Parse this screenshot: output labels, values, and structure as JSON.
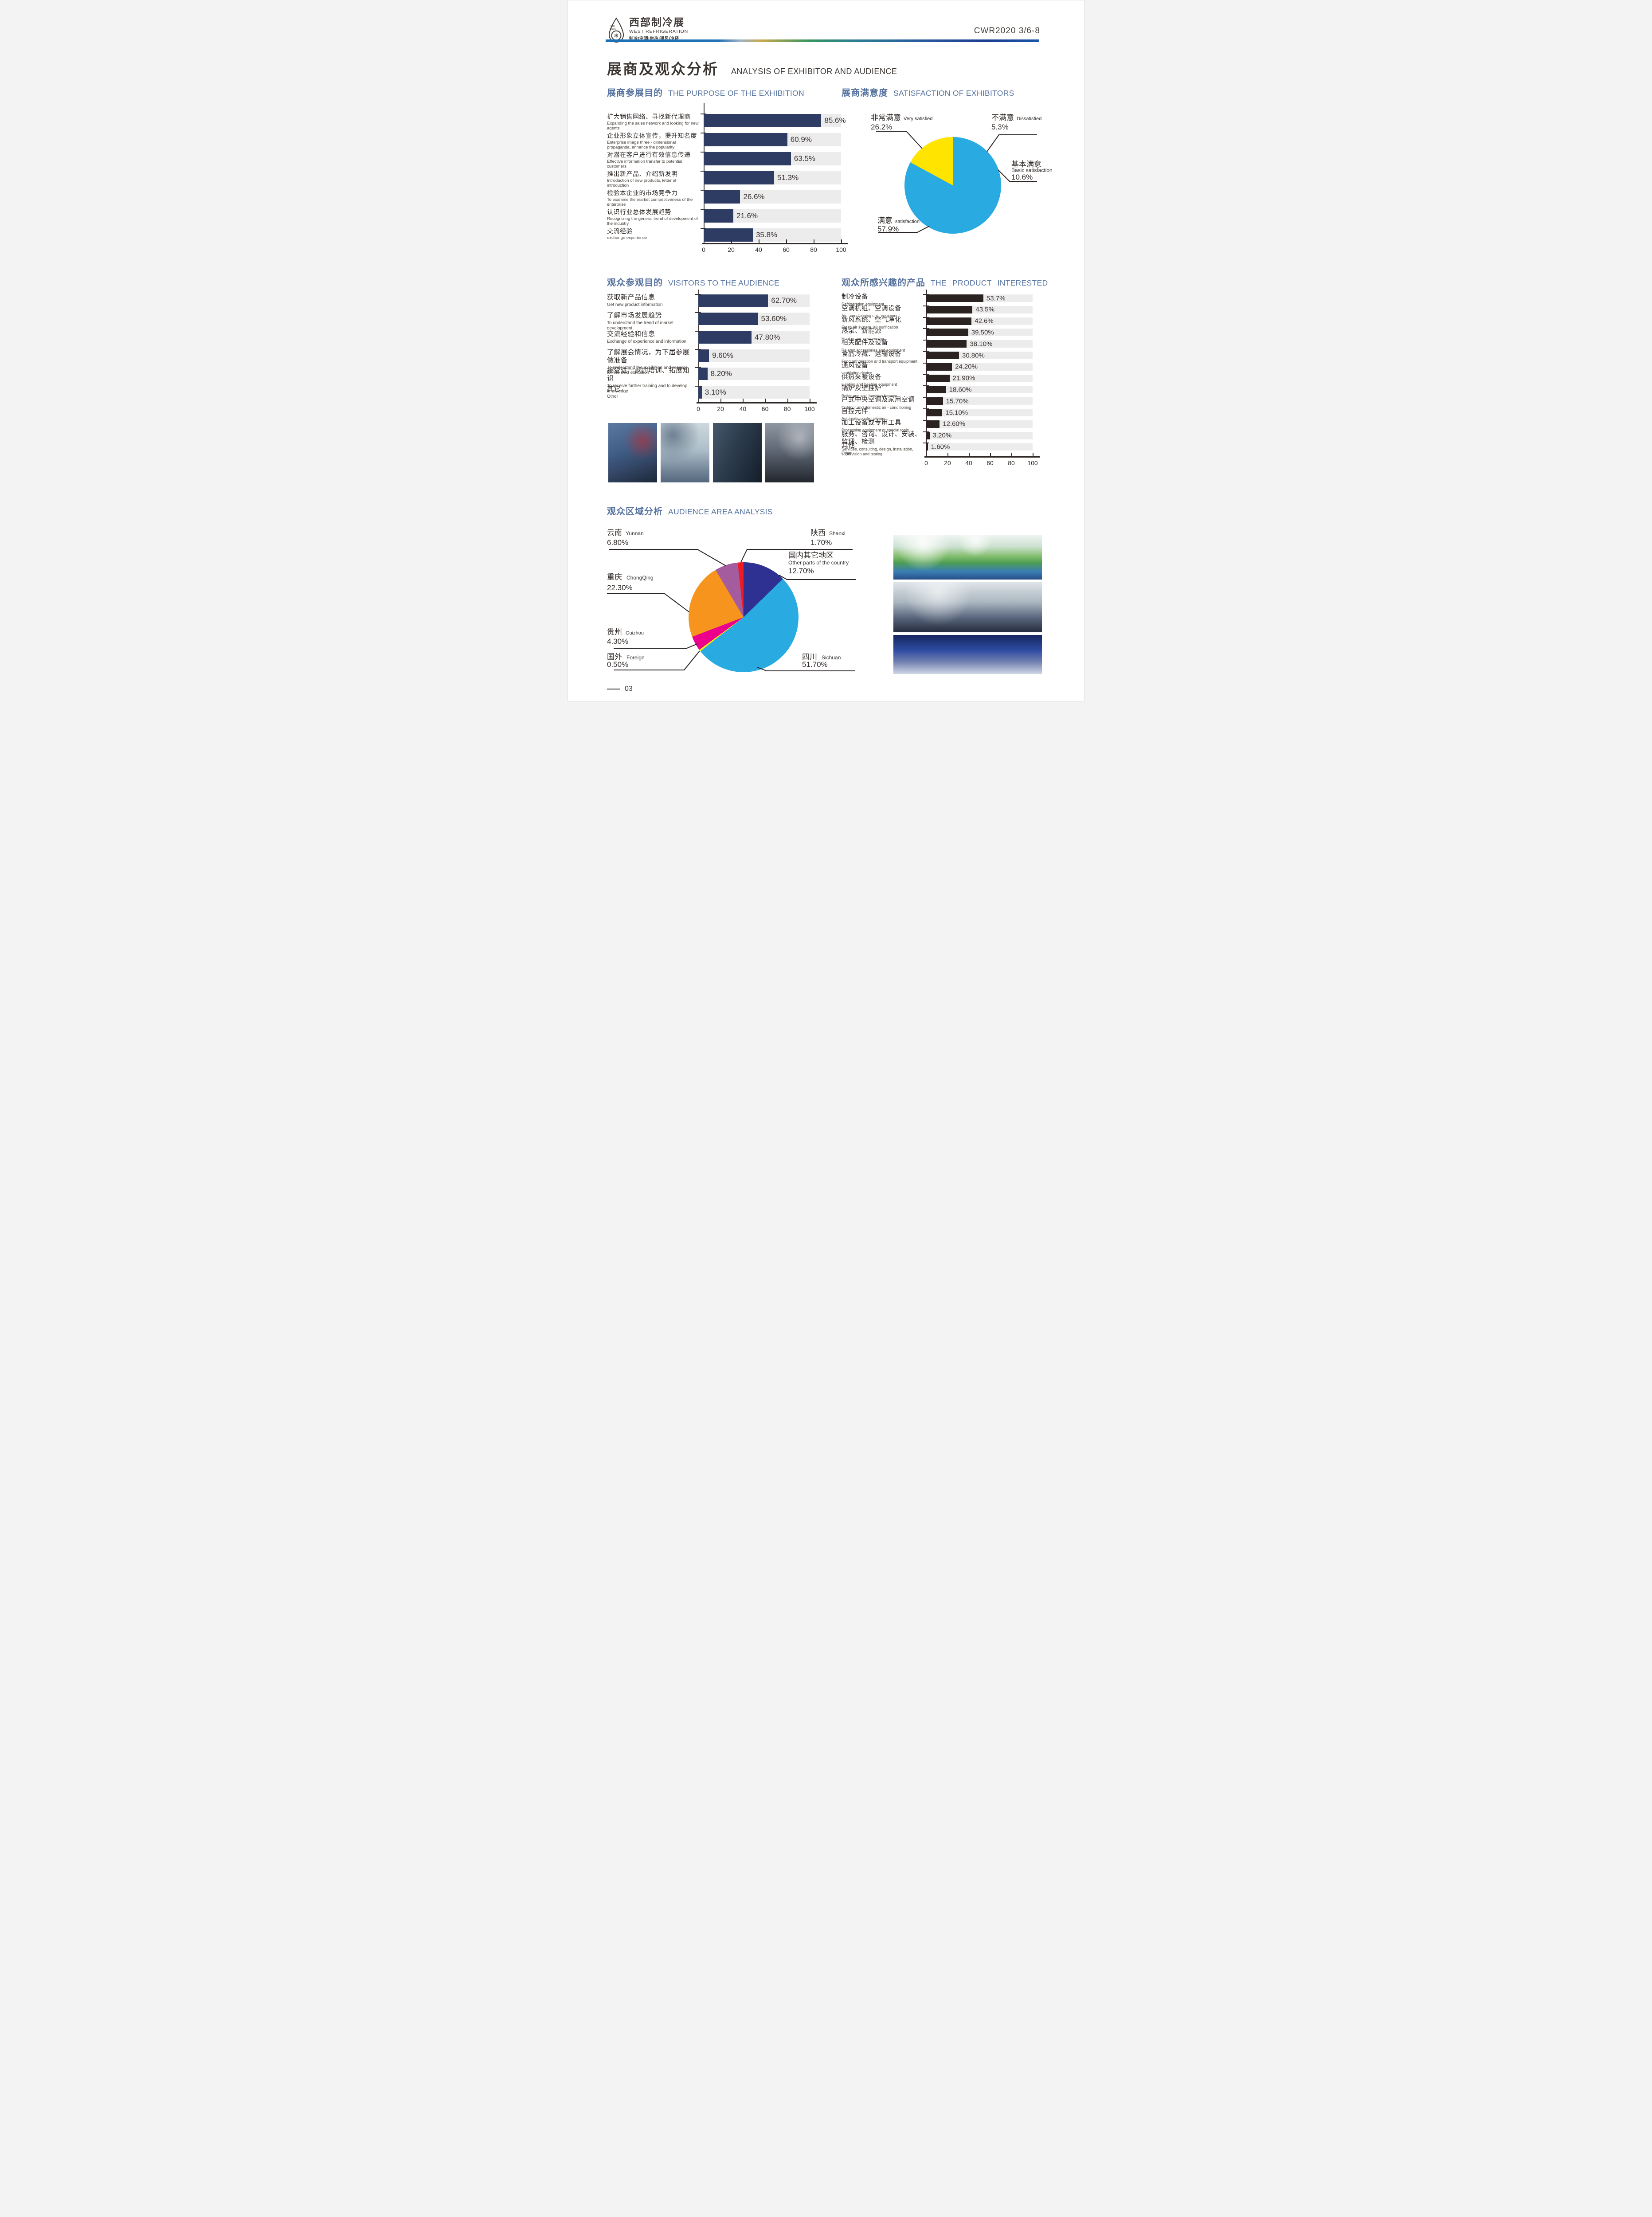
{
  "header": {
    "logo": {
      "zh": "西部制冷展",
      "en": "WEST REFRIGERATION",
      "tagline": "制冷|空调|供热|通风|冷链",
      "badge": "WR 2020"
    },
    "edition": "CWR2020 3/6-8"
  },
  "page_title": {
    "zh": "展商及观众分析",
    "en": "ANALYSIS OF EXHIBITOR AND AUDIENCE"
  },
  "sections": {
    "purpose": {
      "title_zh": "展商参展目的",
      "title_en": "THE PURPOSE OF THE EXHIBITION"
    },
    "satisfaction": {
      "title_zh": "展商满意度",
      "title_en": "SATISFACTION OF EXHIBITORS"
    },
    "visitors": {
      "title_zh": "观众参观目的",
      "title_en": "VISITORS TO THE AUDIENCE"
    },
    "products": {
      "title_zh": "观众所感兴趣的产品",
      "title_en": "THE PRODUCT INTERESTED"
    },
    "area": {
      "title_zh": "观众区域分析",
      "title_en": "AUDIENCE AREA ANALYSIS"
    }
  },
  "page_number": "03",
  "chart_data": [
    {
      "id": "purpose",
      "type": "bar",
      "orientation": "horizontal",
      "title": "展商参展目的 THE PURPOSE OF THE EXHIBITION",
      "xlim": [
        0,
        100
      ],
      "x_ticks": [
        0,
        20,
        40,
        60,
        80,
        100
      ],
      "bar_color": "#2e3c64",
      "track_color": "#ececec",
      "rows": [
        {
          "zh": "扩大销售网络、寻找新代理商",
          "en": "Expanding the sales network and looking for new agents",
          "value": 85.6,
          "label": "85.6%"
        },
        {
          "zh": "企业形象立体宣传，提升知名度",
          "en": "Enterprise image three - dimensional propaganda, enhance the popularity",
          "value": 60.9,
          "label": "60.9%"
        },
        {
          "zh": "对潜在客户进行有效信息传递",
          "en": "Effective information transfer to potential customers",
          "value": 63.5,
          "label": "63.5%"
        },
        {
          "zh": "推出新产品、介绍新发明",
          "en": "Introduction of new products, letter of introduction",
          "value": 51.3,
          "label": "51.3%"
        },
        {
          "zh": "检验本企业的市场竞争力",
          "en": "To examine the market competitiveness of the enterprise",
          "value": 26.6,
          "label": "26.6%"
        },
        {
          "zh": "认识行业总体发展趋势",
          "en": "Recognizing the general trend of development of the industry",
          "value": 21.6,
          "label": "21.6%"
        },
        {
          "zh": "交流经验",
          "en": "exchange experience",
          "value": 35.8,
          "label": "35.8%"
        }
      ]
    },
    {
      "id": "visitors",
      "type": "bar",
      "orientation": "horizontal",
      "title": "观众参观目的 VISITORS TO THE AUDIENCE",
      "xlim": [
        0,
        100
      ],
      "x_ticks": [
        0,
        20,
        40,
        60,
        80,
        100
      ],
      "bar_color": "#2e3c64",
      "track_color": "#ececec",
      "rows": [
        {
          "zh": "获取新产品信息",
          "en": "Get new product information",
          "value": 62.7,
          "label": "62.70%"
        },
        {
          "zh": "了解市场发展趋势",
          "en": "To understand the trend of market development",
          "value": 53.6,
          "label": "53.60%"
        },
        {
          "zh": "交流经验和信息",
          "en": "Exchange of experience and information",
          "value": 47.8,
          "label": "47.80%"
        },
        {
          "zh": "了解展会情况，为下届参展做准备",
          "en": "To understand the exhibition and prepare for the next exhibition",
          "value": 9.6,
          "label": "9.60%"
        },
        {
          "zh": "接受进一步的培训、拓展知识",
          "en": "To receive further training and to develop knowledge",
          "value": 8.2,
          "label": "8.20%"
        },
        {
          "zh": "其它",
          "en": "Other",
          "value": 3.1,
          "label": "3.10%"
        }
      ]
    },
    {
      "id": "products",
      "type": "bar",
      "orientation": "horizontal",
      "title": "观众所感兴趣的产品 THE PRODUCT INTERESTED",
      "xlim": [
        0,
        100
      ],
      "x_ticks": [
        0,
        20,
        40,
        60,
        80,
        100
      ],
      "bar_color": "#2b2321",
      "track_color": "#ececec",
      "rows": [
        {
          "zh": "制冷设备",
          "en": "Refrigeration equipment",
          "value": 53.7,
          "label": "53.7%"
        },
        {
          "zh": "空调机组、空调设备",
          "en": "Air - conditioning unit, equipment",
          "value": 43.5,
          "label": "43.5%"
        },
        {
          "zh": "新风系统、空气净化",
          "en": "Fresh air system, air purification",
          "value": 42.6,
          "label": "42.6%"
        },
        {
          "zh": "热泵、新能源",
          "en": "Heat pump, new energy",
          "value": 39.5,
          "label": "39.50%"
        },
        {
          "zh": "相关配件及设备",
          "en": "Related accessories and equipment",
          "value": 38.1,
          "label": "38.10%"
        },
        {
          "zh": "食品冷藏、运输设备",
          "en": "Food refrigeration and transport equipment",
          "value": 30.8,
          "label": "30.80%"
        },
        {
          "zh": "通风设备",
          "en": "ventilating device",
          "value": 24.2,
          "label": "24.20%"
        },
        {
          "zh": "供热采暖设备",
          "en": "Heating and heating equipment",
          "value": 21.9,
          "label": "21.90%"
        },
        {
          "zh": "锅炉及壁挂炉",
          "en": "Boiler and wall hanging furnace",
          "value": 18.6,
          "label": "18.60%"
        },
        {
          "zh": "户式中央空调及家用空调",
          "en": "Outdoor and domestic air - conditioning",
          "value": 15.7,
          "label": "15.70%"
        },
        {
          "zh": "自控元件",
          "en": "Automatic control element",
          "value": 15.1,
          "label": "15.10%"
        },
        {
          "zh": "加工设备或专用工具",
          "en": "Processing equipment or special tools",
          "value": 12.6,
          "label": "12.60%"
        },
        {
          "zh": "服务、咨询、设计、安装、监理、检测",
          "en": "Services, consulting, design, installation, supervision and testing",
          "value": 3.2,
          "label": "3.20%"
        },
        {
          "zh": "其他",
          "en": "Other",
          "value": 1.6,
          "label": "1.60%"
        }
      ]
    },
    {
      "id": "satisfaction",
      "type": "pie",
      "title": "展商满意度 SATISFACTION OF EXHIBITORS",
      "start_deg": 90,
      "slices": [
        {
          "zh": "满意",
          "en": "satisfaction",
          "value": 57.9,
          "label": "57.9%",
          "color": "#29abe2"
        },
        {
          "zh": "非常满意",
          "en": "Very satisfied",
          "value": 26.2,
          "label": "26.2%",
          "color": "#ffe400"
        },
        {
          "zh": "不满意",
          "en": "Dissatisfied",
          "value": 5.3,
          "label": "5.3%",
          "color": "#a8519e"
        },
        {
          "zh": "基本满意",
          "en": "Basic satisfaction",
          "value": 10.6,
          "label": "10.6%",
          "color": "#f7941d"
        }
      ]
    },
    {
      "id": "area",
      "type": "pie",
      "title": "观众区域分析 AUDIENCE AREA ANALYSIS",
      "start_deg": 0,
      "slices": [
        {
          "zh": "国内其它地区",
          "en": "Other parts of the country",
          "value": 12.7,
          "label": "12.70%",
          "color": "#2e3192"
        },
        {
          "zh": "四川",
          "en": "Sichuan",
          "value": 51.7,
          "label": "51.70%",
          "color": "#29abe2"
        },
        {
          "zh": "国外",
          "en": "Foreign",
          "value": 0.5,
          "label": "0.50%",
          "color": "#fff200"
        },
        {
          "zh": "贵州",
          "en": "Guizhou",
          "value": 4.3,
          "label": "4.30%",
          "color": "#ec008c"
        },
        {
          "zh": "重庆",
          "en": "ChongQing",
          "value": 22.3,
          "label": "22.30%",
          "color": "#f7941d"
        },
        {
          "zh": "云南",
          "en": "Yunnan",
          "value": 6.8,
          "label": "6.80%",
          "color": "#a55c9f"
        },
        {
          "zh": "陕西",
          "en": "Shanxi",
          "value": 1.7,
          "label": "1.70%",
          "color": "#ed1c24"
        }
      ]
    }
  ]
}
